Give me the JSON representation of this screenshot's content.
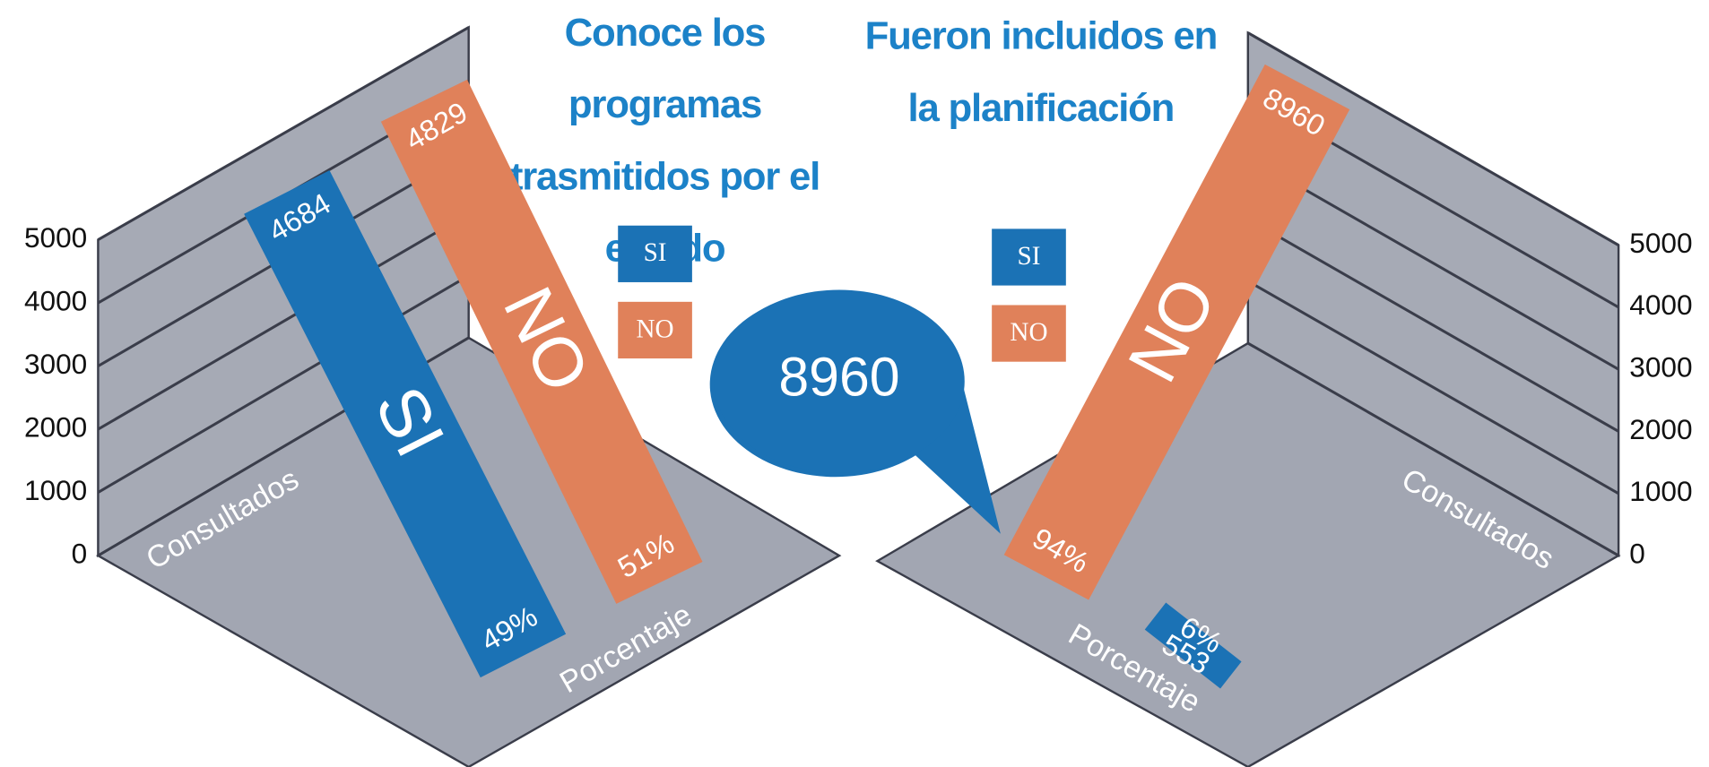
{
  "chart_data": [
    {
      "type": "bar",
      "title": "Conoce los programas trasmitidos por el estado",
      "categories": [
        "SI",
        "NO"
      ],
      "values": [
        4684,
        4829
      ],
      "percentages": [
        "49%",
        "51%"
      ],
      "colors": [
        "#1b72b5",
        "#e0815a"
      ],
      "axis_labels": [
        "Consultados",
        "Porcentaje"
      ],
      "ylim": [
        0,
        5000
      ],
      "yticks": [
        0,
        1000,
        2000,
        3000,
        4000,
        5000
      ],
      "yaxis_side": "left"
    },
    {
      "type": "bar",
      "title": "Fueron incluidos en la planificación",
      "categories": [
        "SI",
        "NO"
      ],
      "values": [
        553,
        8960
      ],
      "percentages": [
        "6%",
        "94%"
      ],
      "colors": [
        "#1b72b5",
        "#e0815a"
      ],
      "axis_labels": [
        "Consultados",
        "Porcentaje"
      ],
      "ylim": [
        0,
        5000
      ],
      "yticks": [
        0,
        1000,
        2000,
        3000,
        4000,
        5000
      ],
      "yaxis_side": "right",
      "annotation": "8960"
    }
  ]
}
